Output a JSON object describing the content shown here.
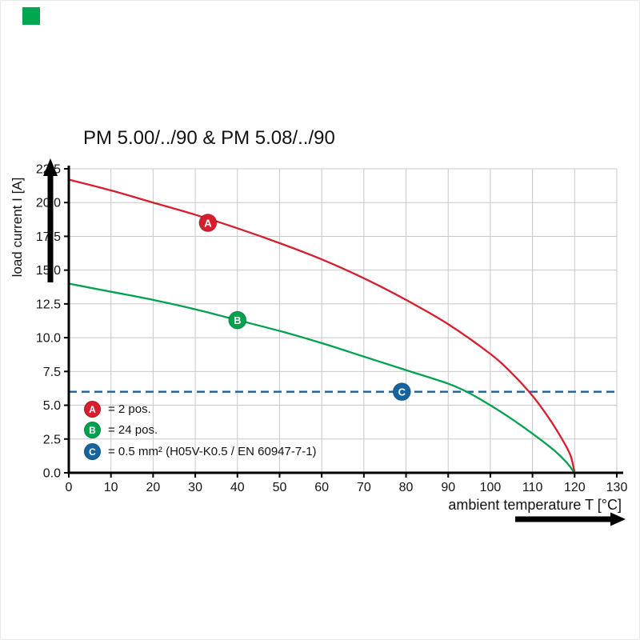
{
  "brand": {
    "square_color": "#00a650"
  },
  "chart_data": {
    "type": "line",
    "title": "PM 5.00/../90 & PM 5.08/../90",
    "xlabel": "ambient temperature T [°C]",
    "ylabel": "load current I [A]",
    "xlim": [
      0,
      130
    ],
    "ylim": [
      0,
      22.5
    ],
    "x_ticks": [
      0,
      10,
      20,
      30,
      40,
      50,
      60,
      70,
      80,
      90,
      100,
      110,
      120,
      130
    ],
    "y_ticks": [
      0,
      2.5,
      5,
      7.5,
      10,
      12.5,
      15,
      17.5,
      20,
      22.5
    ],
    "grid": true,
    "legend_position": "bottom-left-inside",
    "series": [
      {
        "name": "A",
        "legend": "= 2 pos.",
        "color": "#d51f2e",
        "marker": {
          "x": 33,
          "y": 18.5
        },
        "points": [
          [
            0,
            21.7
          ],
          [
            10,
            20.9
          ],
          [
            20,
            20.0
          ],
          [
            30,
            19.1
          ],
          [
            40,
            18.1
          ],
          [
            50,
            17.0
          ],
          [
            60,
            15.8
          ],
          [
            70,
            14.4
          ],
          [
            80,
            12.8
          ],
          [
            90,
            11.0
          ],
          [
            100,
            8.8
          ],
          [
            105,
            7.4
          ],
          [
            110,
            5.7
          ],
          [
            114,
            4.0
          ],
          [
            117,
            2.5
          ],
          [
            119,
            1.3
          ],
          [
            120,
            0
          ]
        ]
      },
      {
        "name": "B",
        "legend": "= 24 pos.",
        "color": "#00a14e",
        "marker": {
          "x": 40,
          "y": 11.3
        },
        "points": [
          [
            0,
            14.0
          ],
          [
            10,
            13.4
          ],
          [
            20,
            12.8
          ],
          [
            30,
            12.1
          ],
          [
            40,
            11.3
          ],
          [
            50,
            10.5
          ],
          [
            60,
            9.6
          ],
          [
            70,
            8.6
          ],
          [
            80,
            7.6
          ],
          [
            90,
            6.6
          ],
          [
            95,
            5.9
          ],
          [
            100,
            5.0
          ],
          [
            105,
            4.0
          ],
          [
            110,
            2.9
          ],
          [
            115,
            1.7
          ],
          [
            118,
            0.8
          ],
          [
            120,
            0
          ]
        ]
      }
    ],
    "reference_line": {
      "name": "C",
      "legend": "= 0.5 mm² (H05V-K0.5 / EN 60947-7-1)",
      "color": "#15649f",
      "y": 6,
      "style": "dashed",
      "marker": {
        "x": 79,
        "y": 6
      }
    }
  }
}
